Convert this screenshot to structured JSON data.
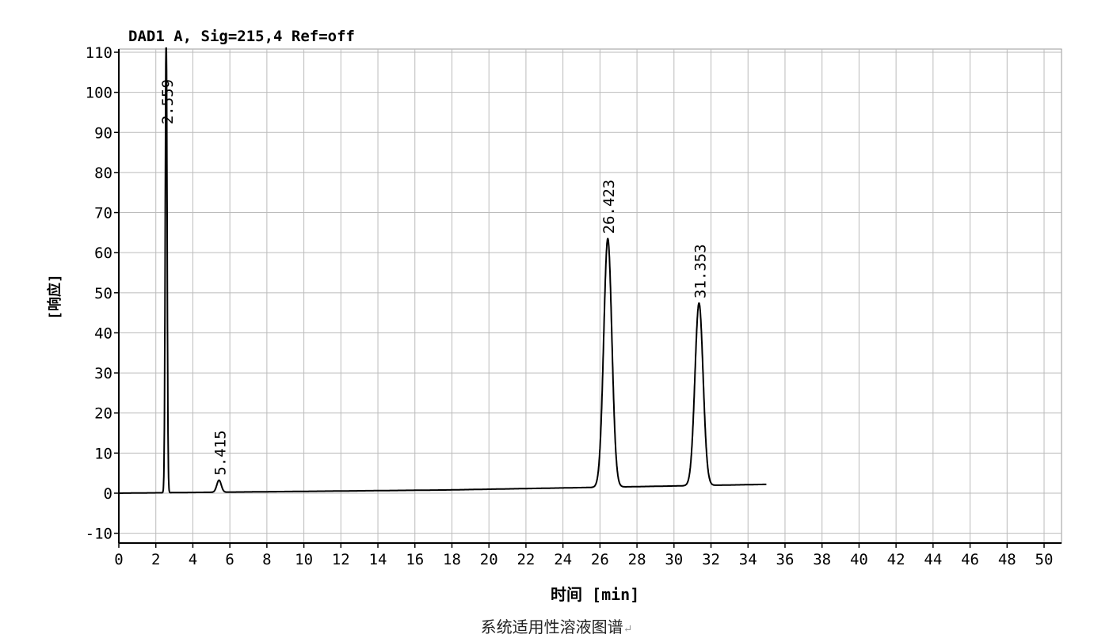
{
  "caption": "系统适用性溶液图谱",
  "chart_data": {
    "type": "line",
    "title": "DAD1 A, Sig=215,4 Ref=off",
    "xlabel": "时间 [min]",
    "ylabel": "[响应]",
    "xlim": [
      0,
      51
    ],
    "ylim": [
      -12,
      110
    ],
    "xticks": [
      0,
      2,
      4,
      6,
      8,
      10,
      12,
      14,
      16,
      18,
      20,
      22,
      24,
      26,
      28,
      30,
      32,
      34,
      36,
      38,
      40,
      42,
      44,
      46,
      48,
      50
    ],
    "yticks": [
      -10,
      0,
      10,
      20,
      30,
      40,
      50,
      60,
      70,
      80,
      90,
      100,
      110
    ],
    "grid": true,
    "run_end": 35,
    "baseline": [
      [
        0,
        0
      ],
      [
        17.7,
        0.8
      ],
      [
        35,
        2.2
      ]
    ],
    "peaks": [
      {
        "label": "2.559",
        "rt": 2.559,
        "height": 115,
        "width": 0.05
      },
      {
        "label": "5.415",
        "rt": 5.415,
        "height": 3,
        "width": 0.12
      },
      {
        "label": "26.423",
        "rt": 26.423,
        "height": 62,
        "width": 0.22
      },
      {
        "label": "31.353",
        "rt": 31.353,
        "height": 45.5,
        "width": 0.22
      }
    ],
    "line_color": "#000000",
    "grid_color": "#bbbbbb"
  }
}
